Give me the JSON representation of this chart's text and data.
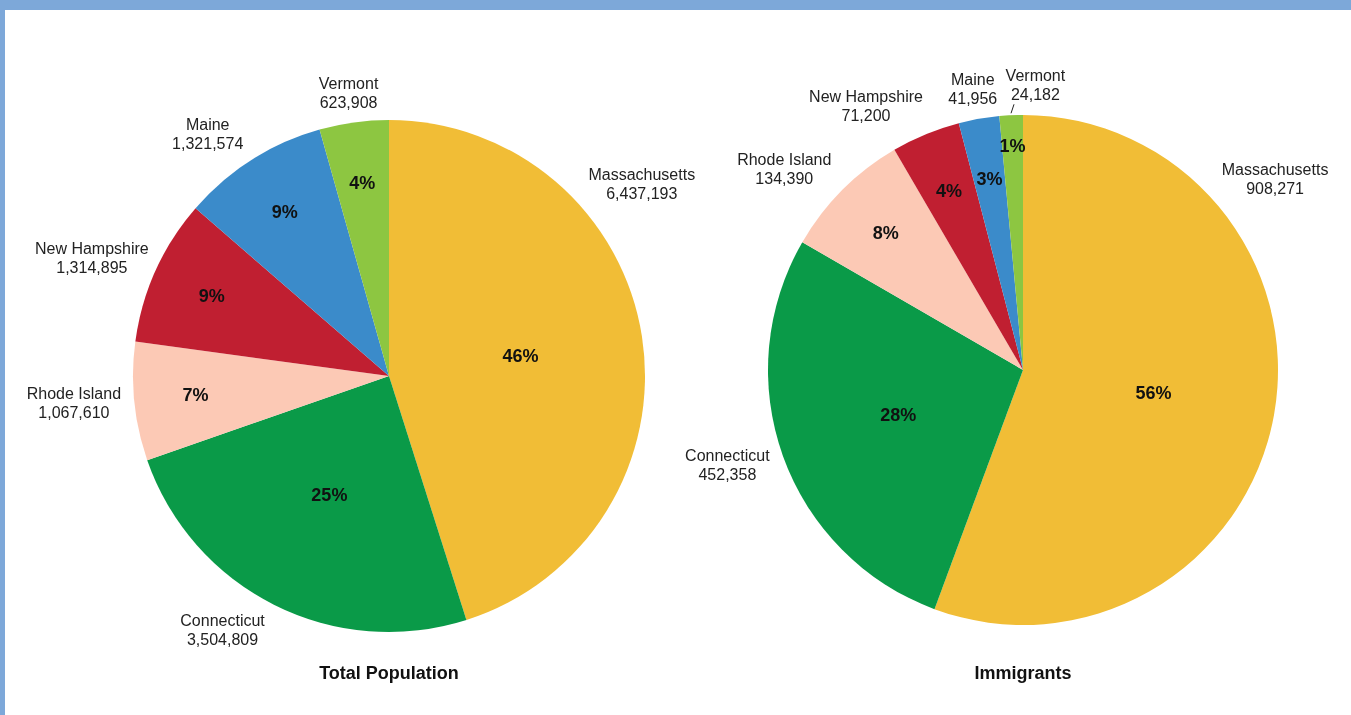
{
  "chart_data": [
    {
      "type": "pie",
      "title": "Total Population",
      "categories": [
        "Massachusetts",
        "Connecticut",
        "Rhode Island",
        "New Hampshire",
        "Maine",
        "Vermont"
      ],
      "values": [
        6437193,
        3504809,
        1067610,
        1314895,
        1321574,
        623908
      ],
      "value_labels": [
        "6,437,193",
        "3,504,809",
        "1,067,610",
        "1,314,895",
        "1,321,574",
        "623,908"
      ],
      "colors": [
        "#f1bd36",
        "#0a9a48",
        "#fcc9b5",
        "#c01f31",
        "#3b8bca",
        "#8dc641"
      ],
      "annotations": [
        {
          "text": "46%",
          "x": "Massachusetts"
        },
        {
          "text": "25%",
          "x": "Connecticut"
        },
        {
          "text": "7%",
          "x": "Rhode Island"
        },
        {
          "text": "9%",
          "x": "New Hampshire"
        },
        {
          "text": "9%",
          "x": "Maine"
        },
        {
          "text": "4%",
          "x": "Vermont"
        }
      ]
    },
    {
      "type": "pie",
      "title": "Immigrants",
      "categories": [
        "Massachusetts",
        "Connecticut",
        "Rhode Island",
        "New Hampshire",
        "Maine",
        "Vermont"
      ],
      "values": [
        908271,
        452358,
        134390,
        71200,
        41956,
        24182
      ],
      "value_labels": [
        "908,271",
        "452,358",
        "134,390",
        "71,200",
        "41,956",
        "24,182"
      ],
      "colors": [
        "#f1bd36",
        "#0a9a48",
        "#fcc9b5",
        "#c01f31",
        "#3b8bca",
        "#8dc641"
      ],
      "annotations": [
        {
          "text": "56%",
          "x": "Massachusetts"
        },
        {
          "text": "28%",
          "x": "Connecticut"
        },
        {
          "text": "8%",
          "x": "Rhode Island"
        },
        {
          "text": "4%",
          "x": "New Hampshire"
        },
        {
          "text": "3%",
          "x": "Maine"
        },
        {
          "text": "1%",
          "x": "Vermont"
        }
      ]
    }
  ]
}
